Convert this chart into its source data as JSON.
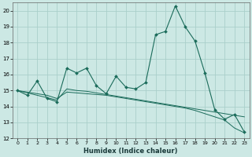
{
  "xlabel": "Humidex (Indice chaleur)",
  "bg_color": "#cce8e4",
  "grid_color": "#aacfca",
  "line_color": "#1a6b5a",
  "xlim": [
    -0.5,
    23.5
  ],
  "ylim": [
    12,
    20.5
  ],
  "xticks": [
    0,
    1,
    2,
    3,
    4,
    5,
    6,
    7,
    8,
    9,
    10,
    11,
    12,
    13,
    14,
    15,
    16,
    17,
    18,
    19,
    20,
    21,
    22,
    23
  ],
  "yticks": [
    12,
    13,
    14,
    15,
    16,
    17,
    18,
    19,
    20
  ],
  "series1_x": [
    0,
    1,
    2,
    3,
    4,
    5,
    6,
    7,
    8,
    9,
    10,
    11,
    12,
    13,
    14,
    15,
    16,
    17,
    18,
    19,
    20,
    21,
    22,
    23
  ],
  "series1_y": [
    15.0,
    14.7,
    15.6,
    14.5,
    14.3,
    16.4,
    16.1,
    16.4,
    15.3,
    14.8,
    15.9,
    15.2,
    15.1,
    15.5,
    18.5,
    18.7,
    20.3,
    19.0,
    18.1,
    16.1,
    13.8,
    13.2,
    13.5,
    12.4
  ],
  "series2_x": [
    0,
    1,
    2,
    3,
    4,
    5,
    6,
    7,
    8,
    9,
    10,
    11,
    12,
    13,
    14,
    15,
    16,
    17,
    18,
    19,
    20,
    21,
    22,
    23
  ],
  "series2_y": [
    15.0,
    14.85,
    14.7,
    14.55,
    14.4,
    15.1,
    15.0,
    14.95,
    14.85,
    14.75,
    14.65,
    14.55,
    14.45,
    14.35,
    14.25,
    14.15,
    14.05,
    13.95,
    13.85,
    13.75,
    13.65,
    13.55,
    13.45,
    13.35
  ],
  "series3_x": [
    0,
    1,
    2,
    3,
    4,
    5,
    6,
    7,
    8,
    9,
    10,
    11,
    12,
    13,
    14,
    15,
    16,
    17,
    18,
    19,
    20,
    21,
    22,
    23
  ],
  "series3_y": [
    15.0,
    14.9,
    14.8,
    14.7,
    14.5,
    14.9,
    14.85,
    14.8,
    14.75,
    14.7,
    14.6,
    14.5,
    14.4,
    14.3,
    14.2,
    14.1,
    14.0,
    13.9,
    13.75,
    13.55,
    13.35,
    13.15,
    12.65,
    12.35
  ]
}
